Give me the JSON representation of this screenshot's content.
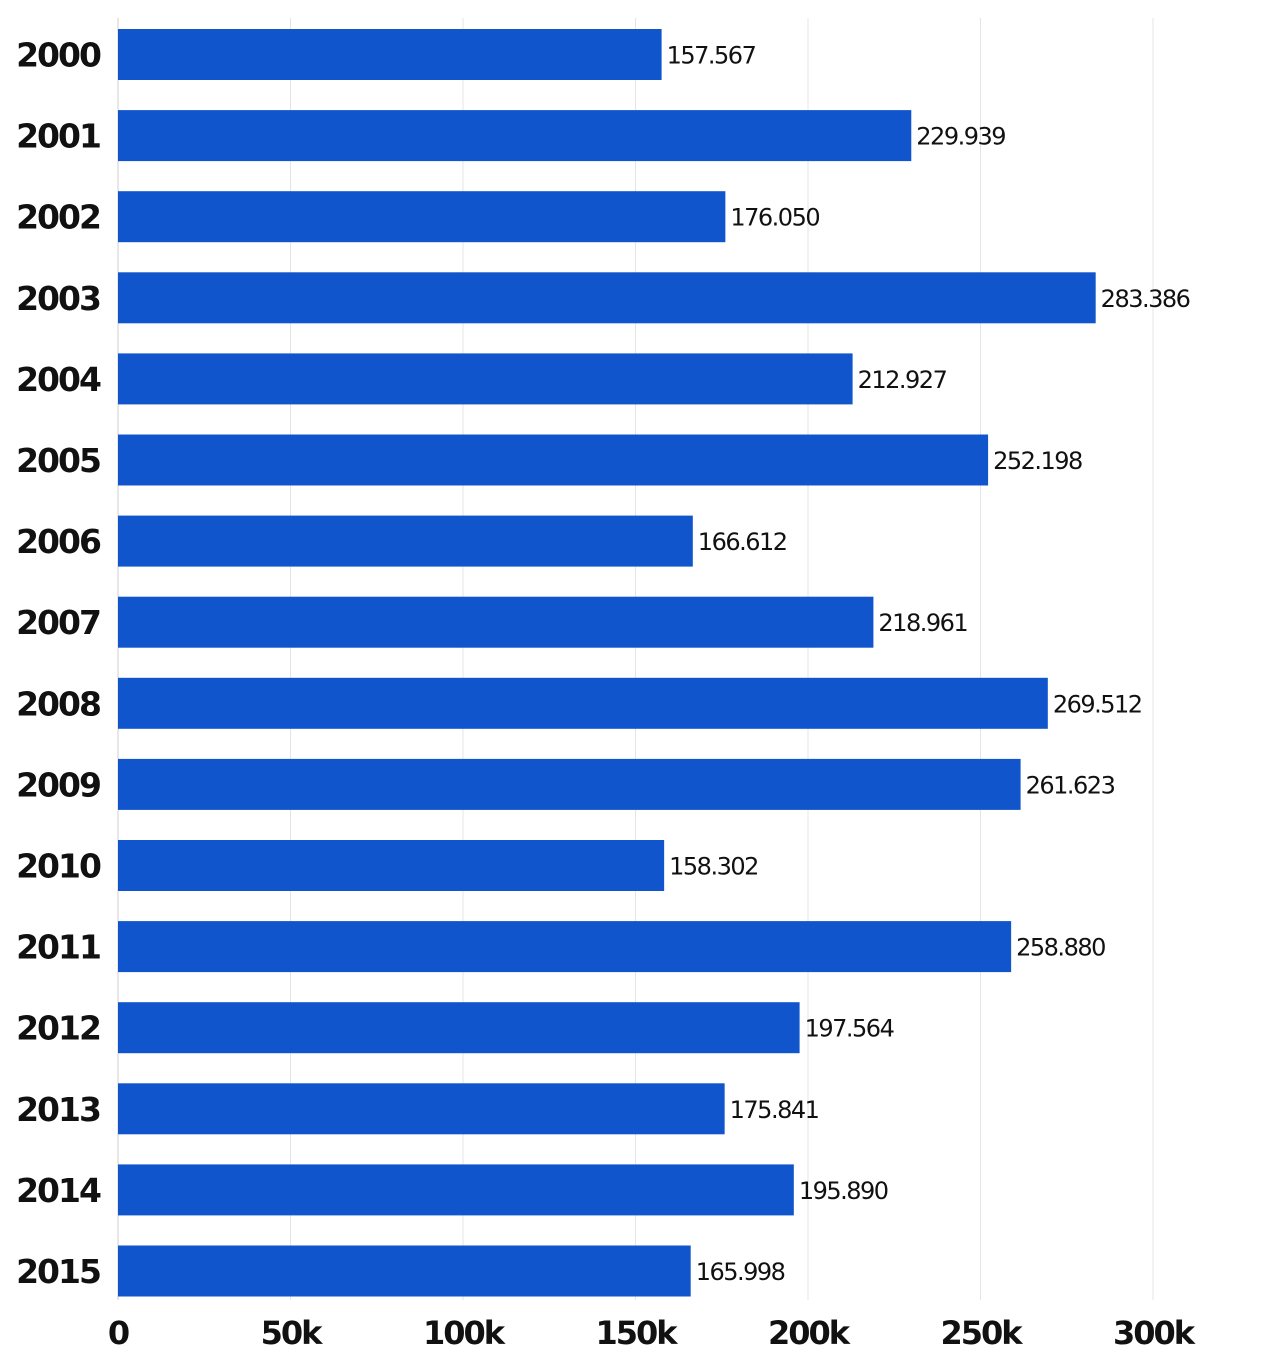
{
  "colors": {
    "bar": "#1155CC",
    "text": "#111111",
    "grid": "#e4e4e4",
    "background": "#ffffff"
  },
  "chart_data": {
    "type": "bar",
    "orientation": "horizontal",
    "title": "",
    "xlabel": "",
    "ylabel": "",
    "categories": [
      "2000",
      "2001",
      "2002",
      "2003",
      "2004",
      "2005",
      "2006",
      "2007",
      "2008",
      "2009",
      "2010",
      "2011",
      "2012",
      "2013",
      "2014",
      "2015"
    ],
    "values": [
      157567,
      229939,
      176050,
      283386,
      212927,
      252198,
      166612,
      218961,
      269512,
      261623,
      158302,
      258880,
      197564,
      175841,
      195890,
      165998
    ],
    "value_labels": [
      "157.567",
      "229.939",
      "176.050",
      "283.386",
      "212.927",
      "252.198",
      "166.612",
      "218.961",
      "269.512",
      "261.623",
      "158.302",
      "258.880",
      "197.564",
      "175.841",
      "195.890",
      "165.998"
    ],
    "xlim": [
      0,
      300000
    ],
    "x_ticks": [
      0,
      50000,
      100000,
      150000,
      200000,
      250000,
      300000
    ],
    "x_tick_labels": [
      "0",
      "50k",
      "100k",
      "150k",
      "200k",
      "250k",
      "300k"
    ],
    "grid": true,
    "legend": "none"
  }
}
